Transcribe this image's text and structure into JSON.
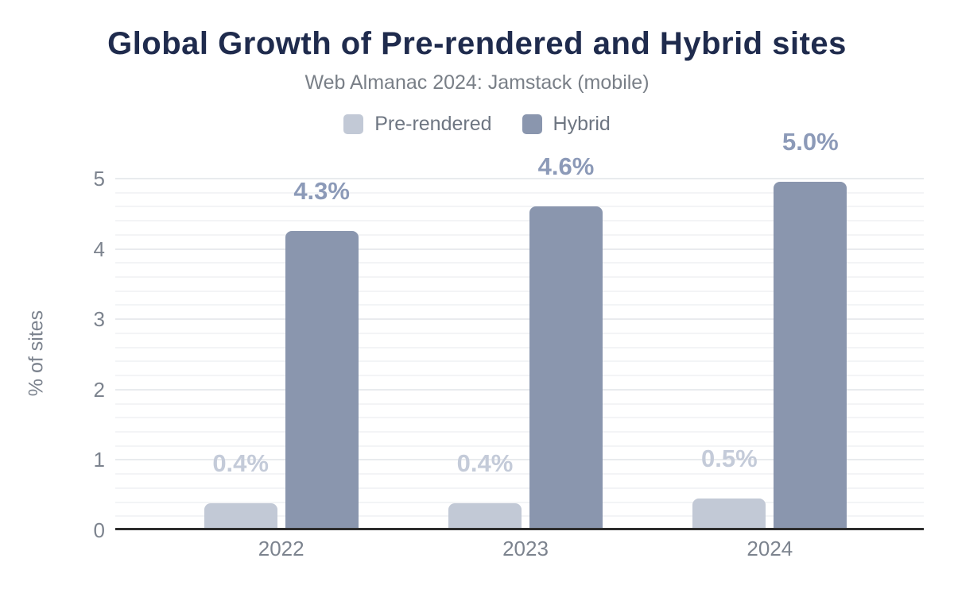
{
  "title": "Global Growth of Pre-rendered and Hybrid sites",
  "subtitle": "Web Almanac 2024: Jamstack (mobile)",
  "colors": {
    "title_text": "#1f2b4d",
    "muted_text": "#797f87",
    "axis_text": "#7c838e",
    "legend_text": "#6e7682",
    "axis_line": "#2d2d2d",
    "gridline_major": "#e9ebee",
    "gridline_minor": "#f3f4f6",
    "pre_rendered": "#c2c9d6",
    "hybrid": "#8a96ae",
    "label_pre_rendered": "#c4cbd9",
    "label_hybrid": "#8c9ab8"
  },
  "chart_data": {
    "type": "bar",
    "title": "Global Growth of Pre-rendered and Hybrid sites",
    "subtitle": "Web Almanac 2024: Jamstack (mobile)",
    "categories": [
      "2022",
      "2023",
      "2024"
    ],
    "series": [
      {
        "name": "Pre-rendered",
        "values": [
          0.38,
          0.38,
          0.45
        ],
        "labels": [
          "0.4%",
          "0.4%",
          "0.5%"
        ],
        "color": "#c2c9d6",
        "label_color": "#c4cbd9"
      },
      {
        "name": "Hybrid",
        "values": [
          4.25,
          4.6,
          4.95
        ],
        "labels": [
          "4.3%",
          "4.6%",
          "5.0%"
        ],
        "color": "#8a96ae",
        "label_color": "#8c9ab8"
      }
    ],
    "xlabel": "",
    "ylabel": "% of sites",
    "ylim": [
      0,
      5
    ],
    "yticks": [
      0,
      1,
      2,
      3,
      4,
      5
    ],
    "minor_gridline_step": 0.2,
    "grid": "horizontal, major and minor lines",
    "legend_position": "top center"
  }
}
